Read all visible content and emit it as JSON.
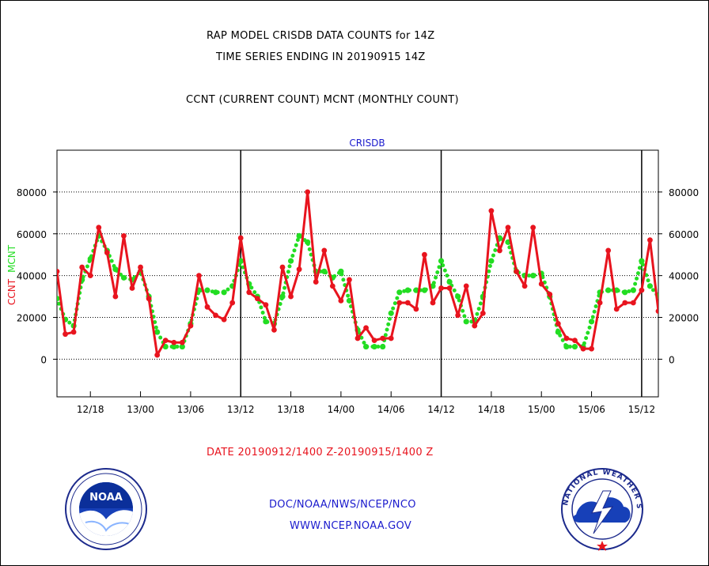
{
  "header": {
    "title_line1": "RAP MODEL CRISDB DATA COUNTS for 14Z",
    "title_line2": "TIME SERIES ENDING IN 20190915 14Z",
    "subtitle": "CCNT (CURRENT COUNT) MCNT (MONTHLY COUNT)"
  },
  "footer": {
    "date_range": "DATE 20190912/1400 Z-20190915/1400 Z",
    "agency": "DOC/NOAA/NWS/NCEP/NCO",
    "website": "WWW.NCEP.NOAA.GOV"
  },
  "logos": {
    "noaa_text": "NOAA",
    "nws_text": "NATIONAL WEATHER SERVICE"
  },
  "colors": {
    "ccnt": "#e8141e",
    "mcnt": "#22dd22",
    "label_blue": "#1a1acd"
  },
  "chart_data": {
    "type": "line",
    "title": "CRISDB",
    "ylabel_ccnt": "CCNT",
    "ylabel_mcnt": "MCNT",
    "ylim": [
      -18000,
      100000
    ],
    "yticks": [
      0,
      20000,
      40000,
      60000,
      80000
    ],
    "x_tick_labels": [
      "12/18",
      "13/00",
      "13/06",
      "13/12",
      "13/18",
      "14/00",
      "14/06",
      "14/12",
      "14/18",
      "15/00",
      "15/06",
      "15/12"
    ],
    "x_tick_hours": [
      4,
      10,
      16,
      22,
      28,
      34,
      40,
      46,
      52,
      58,
      64,
      70
    ],
    "day_boundaries_hours": [
      22,
      46,
      70
    ],
    "grid": true,
    "series": [
      {
        "name": "CCNT",
        "x": [
          0,
          1,
          2,
          3,
          4,
          5,
          6,
          7,
          8,
          9,
          10,
          11,
          12,
          13,
          14,
          15,
          16,
          17,
          18,
          19,
          20,
          21,
          22,
          23,
          24,
          25,
          26,
          27,
          28,
          29,
          30,
          31,
          32,
          33,
          34,
          35,
          36,
          37,
          38,
          39,
          40,
          41,
          42,
          43,
          44,
          45,
          46,
          47,
          48,
          49,
          50,
          51,
          52,
          53,
          54,
          55,
          56,
          57,
          58,
          59,
          60,
          61,
          62,
          63,
          64,
          65,
          66,
          67,
          68,
          69,
          70,
          71,
          72
        ],
        "values": [
          42000,
          12000,
          13000,
          44000,
          40000,
          63000,
          51000,
          30000,
          59000,
          34000,
          44000,
          29000,
          2000,
          9000,
          8000,
          8000,
          16000,
          40000,
          25000,
          21000,
          19000,
          27000,
          58000,
          32000,
          29000,
          26000,
          14000,
          44000,
          30000,
          43000,
          80000,
          37000,
          52000,
          35000,
          28000,
          38000,
          10000,
          15000,
          9000,
          10000,
          10000,
          27000,
          27000,
          24000,
          50000,
          27000,
          34000,
          34000,
          21000,
          35000,
          16000,
          22000,
          71000,
          52000,
          63000,
          42000,
          35000,
          63000,
          36000,
          31000,
          17000,
          10000,
          9000,
          5000,
          5000,
          27000,
          52000,
          24000,
          27000,
          27000,
          33000,
          57000,
          23000
        ]
      },
      {
        "name": "MCNT",
        "x": [
          0,
          1,
          2,
          3,
          4,
          5,
          6,
          7,
          8,
          9,
          10,
          11,
          12,
          13,
          14,
          15,
          16,
          17,
          18,
          19,
          20,
          21,
          22,
          23,
          24,
          25,
          26,
          27,
          28,
          29,
          30,
          31,
          32,
          33,
          34,
          35,
          36,
          37,
          38,
          39,
          40,
          41,
          42,
          43,
          44,
          45,
          46,
          47,
          48,
          49,
          50,
          51,
          52,
          53,
          54,
          55,
          56,
          57,
          58,
          59,
          60,
          61,
          62,
          63,
          64,
          65,
          66,
          67,
          68,
          69,
          70,
          71,
          72
        ],
        "values": [
          29000,
          19000,
          16000,
          38000,
          48000,
          59000,
          52000,
          43000,
          39000,
          38000,
          42000,
          30000,
          13000,
          6000,
          6000,
          6000,
          17000,
          33000,
          33000,
          32000,
          32000,
          35000,
          47000,
          36000,
          30000,
          18000,
          17000,
          30000,
          47000,
          59000,
          56000,
          42000,
          42000,
          39000,
          42000,
          28000,
          14000,
          6000,
          6000,
          6000,
          22000,
          32000,
          33000,
          33000,
          33000,
          35000,
          47000,
          37000,
          30000,
          18000,
          18000,
          30000,
          47000,
          58000,
          56000,
          42000,
          40000,
          40000,
          41000,
          30000,
          13000,
          6000,
          6000,
          6000,
          18000,
          32000,
          33000,
          33000,
          32000,
          33000,
          47000,
          35000,
          30000
        ]
      }
    ]
  }
}
